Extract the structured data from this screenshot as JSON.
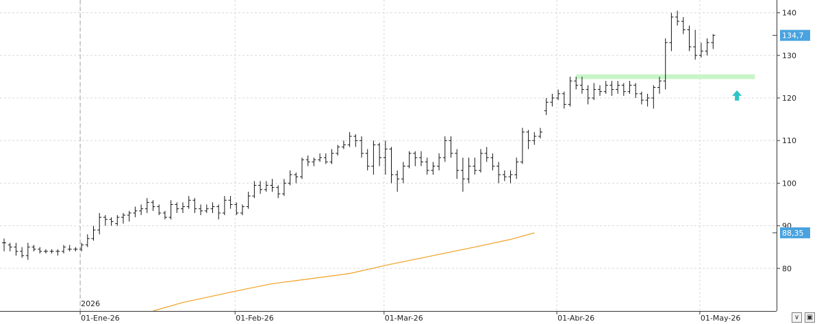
{
  "chart_data": {
    "type": "ohlc",
    "title": "",
    "xlabel": "",
    "ylabel": "",
    "ylim": [
      70,
      143
    ],
    "yticks": [
      80,
      90,
      100,
      110,
      120,
      130,
      140
    ],
    "grid": true,
    "year_label": "2026",
    "month_labels": [
      "01-Ene-26",
      "01-Feb-26",
      "01-Mar-26",
      "01-Abr-26",
      "01-May-26"
    ],
    "last_price_tag": "134,7",
    "last_price": 134.7,
    "moving_average": {
      "color": "#f0a020",
      "tag": "88,35",
      "points": [
        [
          25,
          70
        ],
        [
          30,
          72
        ],
        [
          40,
          75
        ],
        [
          45,
          76.4
        ],
        [
          51,
          77.5
        ],
        [
          58,
          78.8
        ],
        [
          65,
          81
        ],
        [
          72,
          83
        ],
        [
          79,
          85
        ],
        [
          85,
          86.8
        ],
        [
          89,
          88.35
        ]
      ]
    },
    "resistance_zone": {
      "from_bar": 62,
      "to_bar": 89,
      "value": 125,
      "color": "#c8f5c8"
    },
    "breakout_arrow": {
      "bar": 86,
      "value": 120.5,
      "color": "#2ec4c4"
    },
    "bars": [
      [
        86,
        87,
        84,
        86
      ],
      [
        85.5,
        86,
        84,
        85
      ],
      [
        85,
        86,
        83,
        84
      ],
      [
        84,
        85,
        82.5,
        83
      ],
      [
        83,
        86,
        82,
        85
      ],
      [
        85,
        85.5,
        84,
        84.5
      ],
      [
        84.5,
        85,
        83.5,
        84
      ],
      [
        84,
        84.5,
        83.5,
        84
      ],
      [
        84,
        84.5,
        83.5,
        84
      ],
      [
        84,
        84.5,
        83,
        84
      ],
      [
        84,
        85.5,
        83.5,
        85
      ],
      [
        84.5,
        85.5,
        84,
        84.5
      ],
      [
        84.5,
        85,
        84,
        84.5
      ],
      [
        84.5,
        86,
        84,
        85.5
      ],
      [
        85.5,
        88,
        85,
        87
      ],
      [
        87,
        90,
        86.5,
        89
      ],
      [
        89,
        93,
        88,
        92
      ],
      [
        92,
        92.5,
        90,
        91.5
      ],
      [
        91.5,
        92,
        90,
        91
      ],
      [
        90.5,
        92.5,
        90,
        92
      ],
      [
        92,
        93,
        90.5,
        92.5
      ],
      [
        92.5,
        93.5,
        91,
        93
      ],
      [
        93,
        94.5,
        92,
        93.5
      ],
      [
        93.5,
        95,
        92.5,
        94
      ],
      [
        94,
        96.5,
        93,
        95.5
      ],
      [
        95.5,
        96,
        93.5,
        94.5
      ],
      [
        94.5,
        95,
        92.5,
        93
      ],
      [
        93,
        93.5,
        91.5,
        92
      ],
      [
        92,
        96,
        91.5,
        95
      ],
      [
        95,
        95.5,
        93,
        94
      ],
      [
        94,
        95.5,
        93,
        94.5
      ],
      [
        94.5,
        97,
        94,
        96
      ],
      [
        96,
        96.5,
        93,
        94
      ],
      [
        94,
        95,
        92.5,
        93.5
      ],
      [
        93.5,
        95,
        93,
        94
      ],
      [
        94,
        95.5,
        93,
        94.5
      ],
      [
        94.5,
        95,
        91.5,
        93
      ],
      [
        93,
        97,
        92.5,
        96
      ],
      [
        96,
        97,
        94,
        95
      ],
      [
        95,
        95.5,
        92.5,
        93
      ],
      [
        93,
        95,
        92.5,
        94.5
      ],
      [
        94.5,
        98,
        94,
        97
      ],
      [
        97,
        100.5,
        96.5,
        99.5
      ],
      [
        99.5,
        100.5,
        97.5,
        98.5
      ],
      [
        98.5,
        100.5,
        98,
        99.5
      ],
      [
        99.5,
        101,
        98,
        99
      ],
      [
        99,
        99.5,
        96.5,
        97.5
      ],
      [
        97.5,
        101,
        97,
        100
      ],
      [
        100,
        103,
        99.5,
        102
      ],
      [
        102,
        102.5,
        100,
        101.5
      ],
      [
        101.5,
        106,
        101,
        105.5
      ],
      [
        105.5,
        106.5,
        104,
        105
      ],
      [
        105,
        106,
        104,
        105.5
      ],
      [
        105.5,
        107,
        105,
        106
      ],
      [
        106,
        107,
        104.5,
        105
      ],
      [
        105,
        108,
        104.5,
        107
      ],
      [
        107,
        109,
        106.5,
        108.5
      ],
      [
        108.5,
        110,
        108,
        109
      ],
      [
        109,
        112,
        108.5,
        111
      ],
      [
        111,
        111.5,
        108.5,
        110
      ]
    ]
  }
}
